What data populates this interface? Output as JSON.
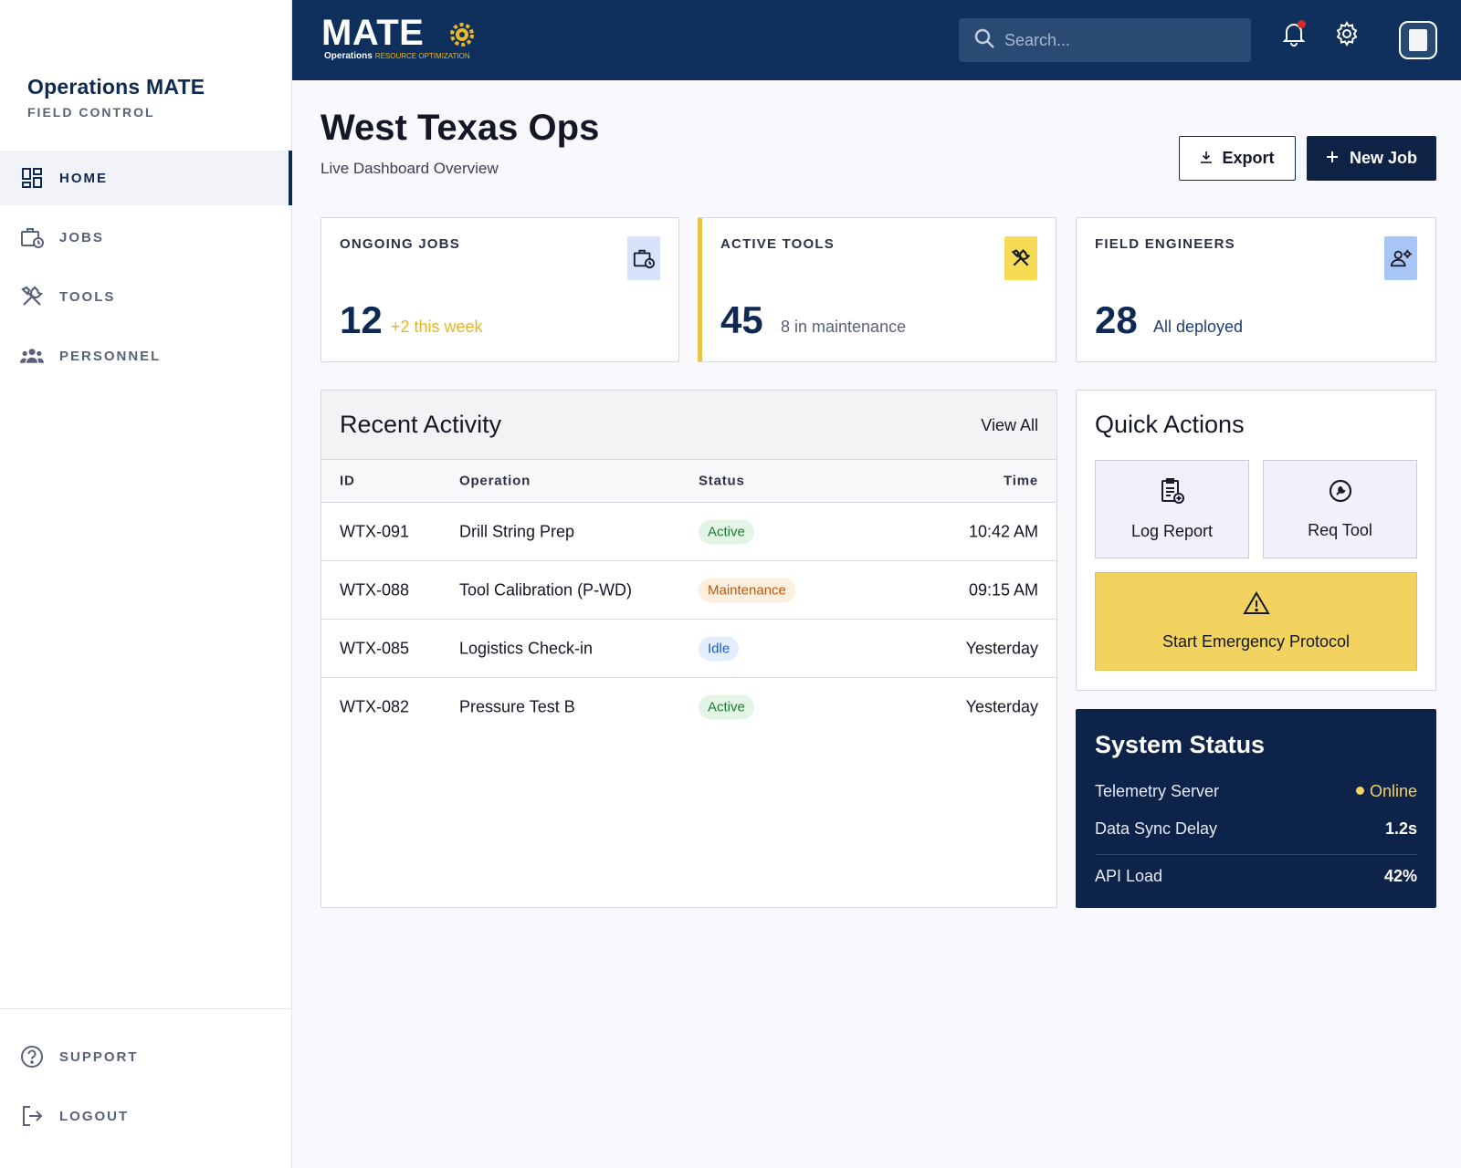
{
  "sidebar": {
    "brand_title": "Operations MATE",
    "brand_subtitle": "FIELD CONTROL",
    "items": [
      {
        "label": "HOME",
        "icon": "dashboard-icon",
        "active": true
      },
      {
        "label": "JOBS",
        "icon": "briefcase-clock-icon",
        "active": false
      },
      {
        "label": "TOOLS",
        "icon": "tools-icon",
        "active": false
      },
      {
        "label": "PERSONNEL",
        "icon": "people-icon",
        "active": false
      }
    ],
    "bottom_items": [
      {
        "label": "SUPPORT",
        "icon": "help-icon"
      },
      {
        "label": "LOGOUT",
        "icon": "logout-icon"
      }
    ]
  },
  "topbar": {
    "logo_word": "MATE",
    "logo_sub_a": "Operations",
    "logo_sub_b": "RESOURCE OPTIMIZATION",
    "search_placeholder": "Search...",
    "icons": [
      "bell-icon",
      "gear-icon",
      "avatar"
    ],
    "notification_dot_color": "#d42a2a"
  },
  "header": {
    "title": "West Texas Ops",
    "subtitle": "Live Dashboard Overview",
    "export_label": "Export",
    "new_job_label": "New Job"
  },
  "kpis": [
    {
      "label": "ONGOING JOBS",
      "value": "12",
      "note": "+2 this week",
      "note_color": "#e0b627",
      "icon": "briefcase-clock-icon",
      "icon_bg": "#d7e3fa"
    },
    {
      "label": "ACTIVE TOOLS",
      "value": "45",
      "note": "8 in maintenance",
      "note_color": "#5a6277",
      "icon": "tools-icon",
      "icon_bg": "#f6dc55"
    },
    {
      "label": "FIELD ENGINEERS",
      "value": "28",
      "note": "All deployed",
      "note_color": "#1f3e75",
      "icon": "engineer-icon",
      "icon_bg": "#a8c6f5"
    }
  ],
  "activity": {
    "title": "Recent Activity",
    "view_all": "View All",
    "columns": [
      "ID",
      "Operation",
      "Status",
      "Time"
    ],
    "rows": [
      {
        "id": "WTX-091",
        "operation": "Drill String Prep",
        "status": "Active",
        "time": "10:42 AM"
      },
      {
        "id": "WTX-088",
        "operation": "Tool Calibration (P-WD)",
        "status": "Maintenance",
        "time": "09:15 AM"
      },
      {
        "id": "WTX-085",
        "operation": "Logistics Check-in",
        "status": "Idle",
        "time": "Yesterday"
      },
      {
        "id": "WTX-082",
        "operation": "Pressure Test B",
        "status": "Active",
        "time": "Yesterday"
      }
    ],
    "status_colors": {
      "Active": {
        "bg": "#e4f4e6",
        "fg": "#1e7a34"
      },
      "Maintenance": {
        "bg": "#fdeedd",
        "fg": "#b45a10"
      },
      "Idle": {
        "bg": "#e3eefc",
        "fg": "#1c5fc0"
      }
    }
  },
  "quick_actions": {
    "title": "Quick Actions",
    "log_report": "Log Report",
    "req_tool": "Req Tool",
    "emergency": "Start Emergency Protocol"
  },
  "system_status": {
    "title": "System Status",
    "rows": [
      {
        "key": "Telemetry Server",
        "value": "Online"
      },
      {
        "key": "Data Sync Delay",
        "value": "1.2s"
      },
      {
        "key": "API Load",
        "value": "42%"
      }
    ],
    "online_color": "#f3d35f"
  }
}
